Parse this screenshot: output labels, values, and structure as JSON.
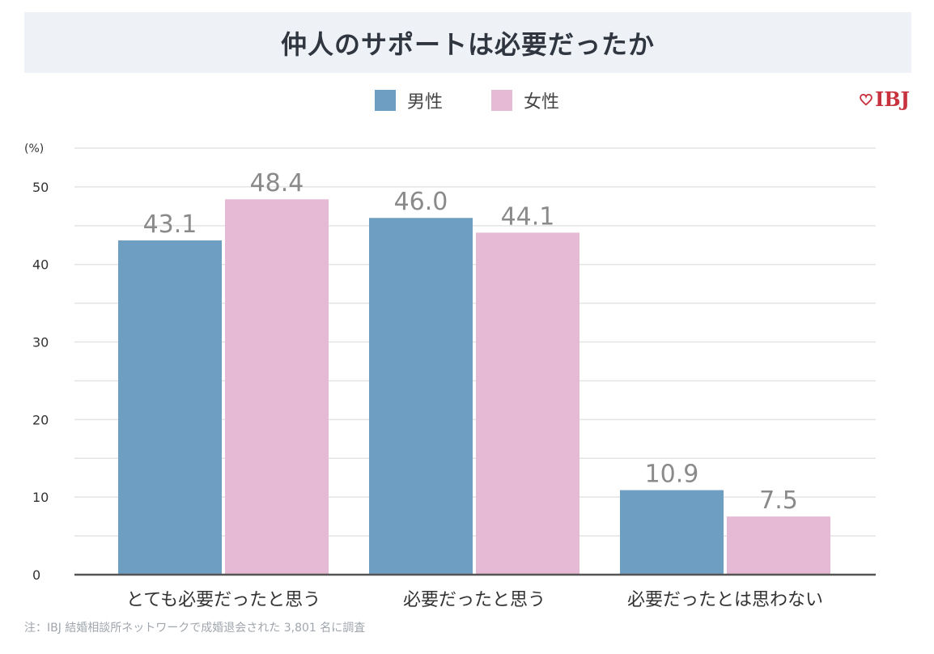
{
  "title": "仲人のサポートは必要だったか",
  "logo_text": "IBJ",
  "footnote": "注：IBJ 結婚相談所ネットワークで成婚退会された 3,801 名に調査",
  "colors": {
    "male": "#6e9fc2",
    "female": "#e6bad5",
    "title_bg": "#eef2f6",
    "grid": "#e4e4e4",
    "axis": "#555555",
    "logo": "#c7323e"
  },
  "chart_data": {
    "type": "bar",
    "title": "仲人のサポートは必要だったか",
    "ylabel": "(%)",
    "categories": [
      "とても必要だったと思う",
      "必要だったと思う",
      "必要だったとは思わない"
    ],
    "series": [
      {
        "name": "男性",
        "values": [
          43.1,
          46.0,
          10.9
        ],
        "labels": [
          "43.1",
          "46.0",
          "10.9"
        ],
        "color": "#6e9fc2"
      },
      {
        "name": "女性",
        "values": [
          48.4,
          44.1,
          7.5
        ],
        "labels": [
          "48.4",
          "44.1",
          "7.5"
        ],
        "color": "#e6bad5"
      }
    ],
    "ylim": [
      0,
      55
    ],
    "yticks": [
      0,
      10,
      20,
      30,
      40,
      50
    ],
    "grid": true,
    "legend_position": "top-center"
  }
}
